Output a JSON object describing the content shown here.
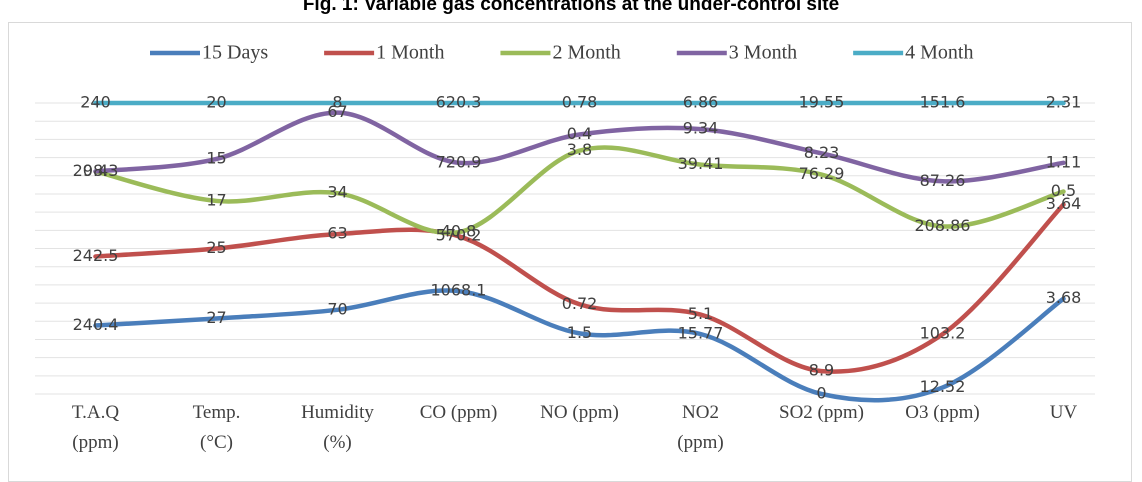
{
  "chart_data": {
    "type": "stacked-line-percent",
    "title": "Fig. 1: Variable gas concentrations at the under-control site",
    "categories": [
      "T.A.Q\n(ppm)",
      "Temp.\n(°C)",
      "Humidity\n(%)",
      "CO (ppm)",
      "NO (ppm)",
      "NO2\n(ppm)",
      "SO2 (ppm)",
      "O3 (ppm)",
      "UV"
    ],
    "series": [
      {
        "name": "15 Days",
        "color": "#4a7ebb",
        "values": [
          240.4,
          27,
          70,
          1068.1,
          1.5,
          15.77,
          0,
          12.52,
          3.68
        ]
      },
      {
        "name": "1 Month",
        "color": "#c0504d",
        "values": [
          242.5,
          25,
          63,
          570.2,
          0.72,
          5.1,
          8.9,
          103.2,
          3.64
        ]
      },
      {
        "name": "2 Month",
        "color": "#9bbb59",
        "values": [
          298.3,
          17,
          34,
          40.8,
          3.8,
          39.41,
          76.29,
          208.86,
          0.5
        ]
      },
      {
        "name": "3 Month",
        "color": "#8064a2",
        "values": [
          0.4,
          15,
          67,
          720.9,
          0.4,
          9.34,
          8.23,
          87.26,
          1.11
        ]
      },
      {
        "name": "4 Month",
        "color": "#4bacc6",
        "values": [
          240,
          20,
          8,
          620.3,
          0.78,
          6.86,
          19.55,
          151.6,
          2.31
        ]
      }
    ],
    "legend": "top"
  }
}
